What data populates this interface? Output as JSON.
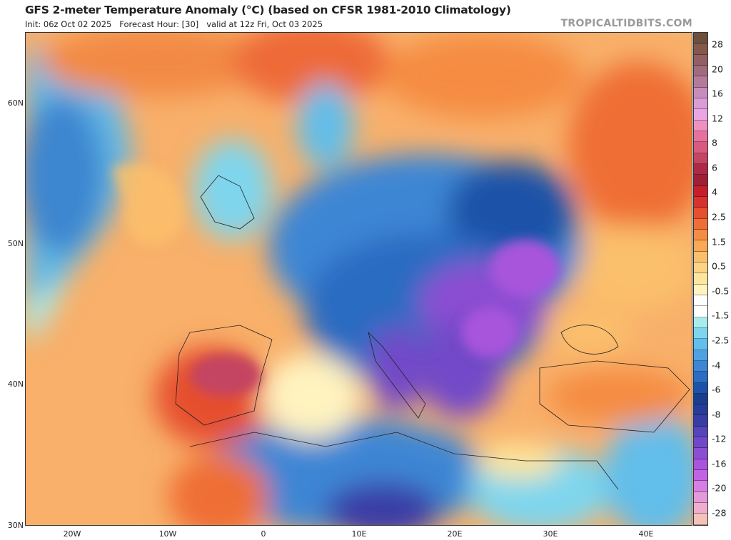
{
  "header": {
    "title": "GFS 2-meter Temperature Anomaly (°C) (based on CFSR 1981-2010 Climatology)",
    "subtitle": "Init: 06z Oct 02 2025   Forecast Hour: [30]   valid at 12z Fri, Oct 03 2025",
    "brand": "TROPICALTIDBITS.COM"
  },
  "map": {
    "lat_labels": [
      "60N",
      "50N",
      "40N",
      "30N"
    ],
    "lon_labels": [
      "20W",
      "10W",
      "0",
      "10E",
      "20E",
      "30E",
      "40E"
    ]
  },
  "colorbar": {
    "labels": [
      "28",
      "20",
      "16",
      "12",
      "8",
      "6",
      "4",
      "2.5",
      "1.5",
      "0.5",
      "-0.5",
      "-1.5",
      "-2.5",
      "-4",
      "-6",
      "-8",
      "-12",
      "-16",
      "-20",
      "-28"
    ],
    "colors": [
      "#6e4e3c",
      "#84594a",
      "#935f62",
      "#a36a7e",
      "#b47a9c",
      "#c88cbc",
      "#dc9cd6",
      "#eaa6e2",
      "#f090c0",
      "#e8709c",
      "#d85a7e",
      "#c44462",
      "#ac2a46",
      "#a01e36",
      "#c61f2a",
      "#d8322c",
      "#e6502e",
      "#ef6e36",
      "#f58c42",
      "#f9a854",
      "#fbc06c",
      "#fdd484",
      "#fee69e",
      "#fff3bf",
      "#ffffff",
      "#ffffff",
      "#a6eeee",
      "#7ed6ee",
      "#62beea",
      "#4ea2e2",
      "#3c86d4",
      "#2c6cc2",
      "#1e52a8",
      "#1a3e8e",
      "#263c9a",
      "#3a3ca6",
      "#5644bc",
      "#7248c8",
      "#8c4ed2",
      "#a854dc",
      "#c262e4",
      "#d67ee4",
      "#e49ad8",
      "#eeaecc",
      "#f6c2b8"
    ]
  }
}
